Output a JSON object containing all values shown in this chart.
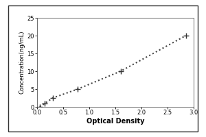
{
  "x_data": [
    0.05,
    0.15,
    0.3,
    0.78,
    1.6,
    2.85
  ],
  "y_data": [
    0.0,
    1.0,
    2.5,
    5.0,
    10.0,
    20.0
  ],
  "xlabel": "Optical Density",
  "ylabel": "Concentration(ng/mL)",
  "xlim": [
    0,
    3
  ],
  "ylim": [
    0,
    25
  ],
  "xticks": [
    0,
    0.5,
    1,
    1.5,
    2,
    2.5,
    3
  ],
  "yticks": [
    0,
    5,
    10,
    15,
    20,
    25
  ],
  "line_color": "#444444",
  "marker": "+",
  "marker_size": 6,
  "marker_color": "#333333",
  "linestyle": "dotted",
  "linewidth": 1.5,
  "background_color": "#ffffff",
  "xlabel_fontsize": 7,
  "ylabel_fontsize": 6,
  "tick_fontsize": 6,
  "figure_border_color": "#333333"
}
